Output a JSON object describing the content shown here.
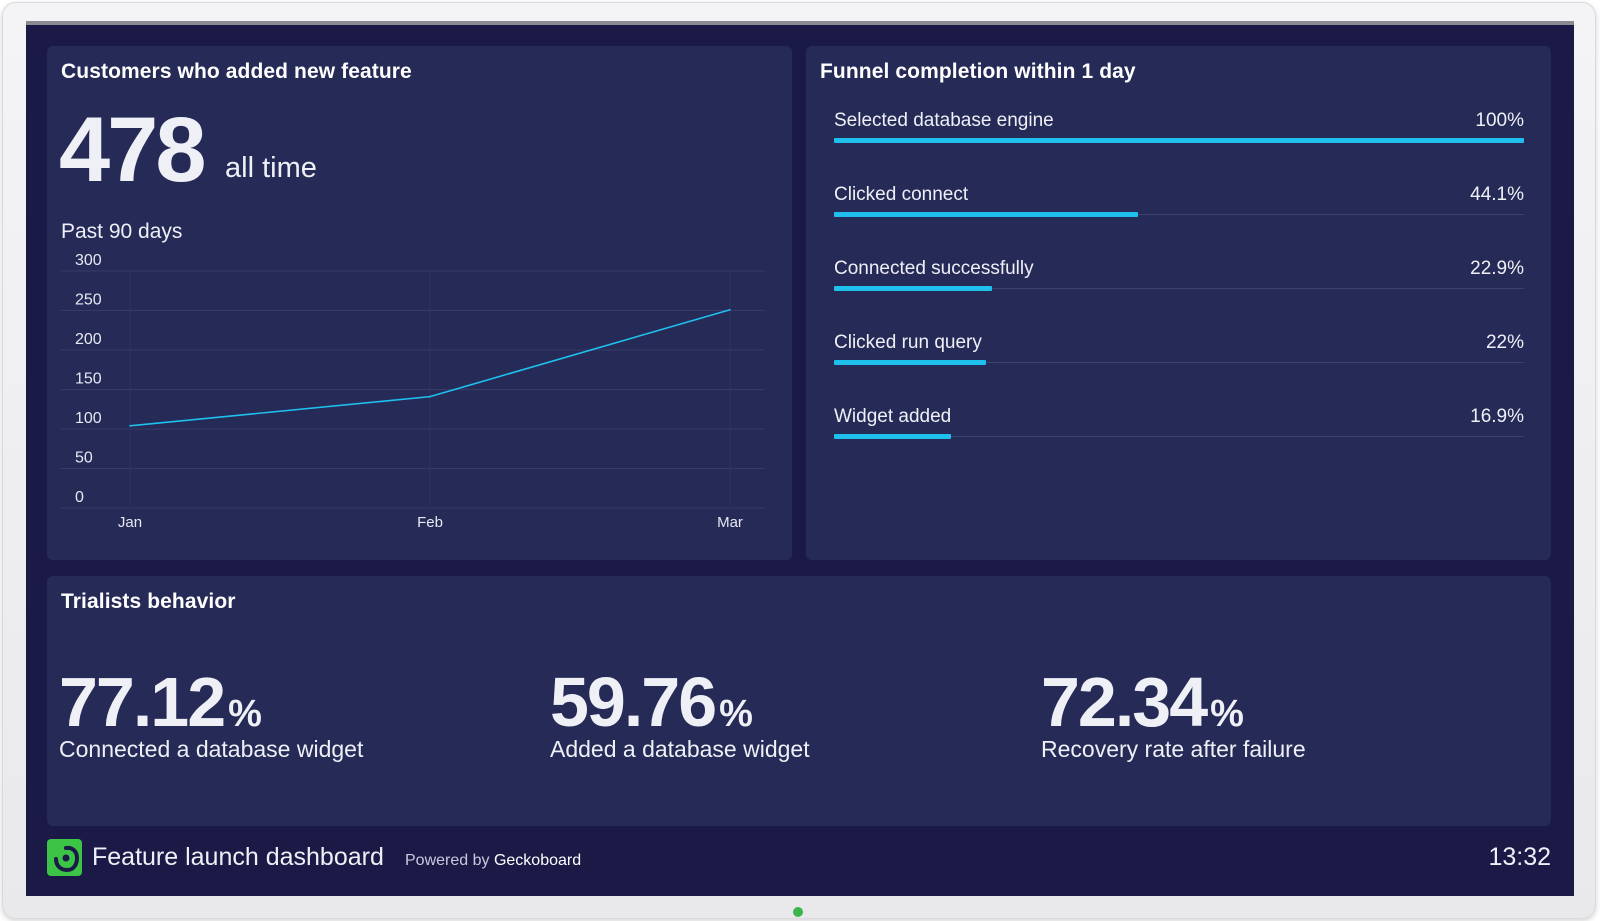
{
  "colors": {
    "background": "#1b1a47",
    "panel": "#262a56",
    "accent": "#1fc0ee",
    "logo": "#3cc447"
  },
  "customers": {
    "title": "Customers who added new feature",
    "total": "478",
    "total_suffix": "all time",
    "period_label": "Past 90 days"
  },
  "chart_data": {
    "type": "line",
    "title": "Past 90 days",
    "categories": [
      "Jan",
      "Feb",
      "Mar"
    ],
    "series": [
      {
        "name": "Customers",
        "values": [
          104,
          141,
          251
        ]
      }
    ],
    "y_ticks": [
      "300",
      "250",
      "200",
      "150",
      "100",
      "50",
      "0"
    ],
    "ylim": [
      0,
      300
    ],
    "grid": true,
    "color": "#1fc0ee"
  },
  "funnel": {
    "title": "Funnel completion within 1 day",
    "steps": [
      {
        "label": "Selected database engine",
        "value": "100%",
        "percent": 100
      },
      {
        "label": "Clicked connect",
        "value": "44.1%",
        "percent": 44.1
      },
      {
        "label": "Connected successfully",
        "value": "22.9%",
        "percent": 22.9
      },
      {
        "label": "Clicked run query",
        "value": "22%",
        "percent": 22
      },
      {
        "label": "Widget added",
        "value": "16.9%",
        "percent": 16.9
      }
    ]
  },
  "trialists": {
    "title": "Trialists behavior",
    "stats": [
      {
        "value": "77.12",
        "unit": "%",
        "label": "Connected a database widget"
      },
      {
        "value": "59.76",
        "unit": "%",
        "label": "Added a database widget"
      },
      {
        "value": "72.34",
        "unit": "%",
        "label": "Recovery rate after failure"
      }
    ]
  },
  "footer": {
    "logo_icon": "geckoboard-logo-icon",
    "dashboard_title": "Feature launch dashboard",
    "powered_prefix": "Powered by",
    "powered_brand": "Geckoboard",
    "time": "13:32"
  }
}
